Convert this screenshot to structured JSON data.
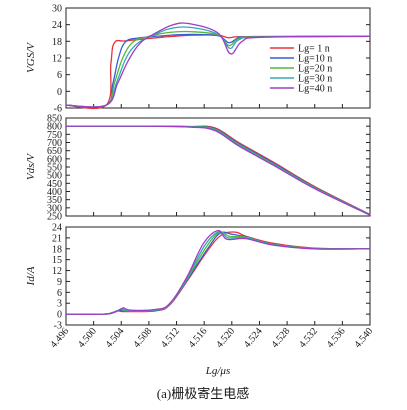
{
  "chart_data": {
    "type": "line",
    "caption": "(a)栅极寄生电感",
    "xlabel": "Lg/μs",
    "x_ticks": [
      "4.496",
      "4.500",
      "4.504",
      "4.508",
      "4.512",
      "4.516",
      "4.520",
      "4.524",
      "4.528",
      "4.532",
      "4.536",
      "4.540"
    ],
    "xlim": [
      4.496,
      4.54
    ],
    "legend": {
      "placement": "top-right of upper panel",
      "entries": [
        "Lg= 1 n",
        "Lg=10 n",
        "Lg=20 n",
        "Lg=30 n",
        "Lg=40 n"
      ]
    },
    "series_colors": [
      "#e8323a",
      "#3b5bd6",
      "#53b83a",
      "#32a8b8",
      "#a03cc8"
    ],
    "panels": [
      {
        "id": "vgs",
        "ylabel": "VGS/V",
        "ylim": [
          -6,
          30
        ],
        "y_ticks": [
          "30",
          "24",
          "18",
          "12",
          "6",
          "0",
          "-6"
        ],
        "y_tick_values": [
          30,
          24,
          18,
          12,
          6,
          0,
          -6
        ],
        "series": [
          {
            "name": "Lg= 1 n",
            "x": [
              4.496,
              4.5018,
              4.5025,
              4.503,
              4.5048,
              4.51,
              4.514,
              4.518,
              4.5194,
              4.5205,
              4.522,
              4.53,
              4.54
            ],
            "y": [
              -5,
              -5,
              10,
              17.5,
              18.2,
              19.5,
              20.2,
              20.2,
              19.3,
              19.6,
              19.7,
              19.8,
              19.8
            ]
          },
          {
            "name": "Lg=10 n",
            "x": [
              4.496,
              4.5018,
              4.5028,
              4.5036,
              4.5046,
              4.5065,
              4.51,
              4.514,
              4.518,
              4.5196,
              4.521,
              4.523,
              4.54
            ],
            "y": [
              -5,
              -5,
              3,
              12,
              17.8,
              19.2,
              20.0,
              20.5,
              20.0,
              17.5,
              19.3,
              19.6,
              19.8
            ]
          },
          {
            "name": "Lg=20 n",
            "x": [
              4.496,
              4.5018,
              4.503,
              4.5042,
              4.5056,
              4.5075,
              4.511,
              4.514,
              4.518,
              4.5196,
              4.521,
              4.524,
              4.54
            ],
            "y": [
              -5,
              -5,
              3,
              12,
              17.5,
              19.5,
              21.2,
              21.5,
              20.3,
              16.5,
              19.0,
              19.6,
              19.8
            ]
          },
          {
            "name": "Lg=30 n",
            "x": [
              4.496,
              4.5018,
              4.5033,
              4.5047,
              4.5063,
              4.5085,
              4.511,
              4.514,
              4.518,
              4.5197,
              4.521,
              4.524,
              4.54
            ],
            "y": [
              -5,
              -5,
              3,
              12,
              17.2,
              20.0,
              22.5,
              23.0,
              20.5,
              15.5,
              18.5,
              19.5,
              19.8
            ]
          },
          {
            "name": "Lg=40 n",
            "x": [
              4.496,
              4.5018,
              4.5035,
              4.505,
              4.5068,
              4.509,
              4.5115,
              4.514,
              4.518,
              4.5198,
              4.5215,
              4.5245,
              4.54
            ],
            "y": [
              -5,
              -5,
              3,
              11,
              17.5,
              21.0,
              24.0,
              24.3,
              21.0,
              13.5,
              18.0,
              19.5,
              19.8
            ]
          }
        ]
      },
      {
        "id": "vds",
        "ylabel": "Vds/V",
        "ylim": [
          250,
          850
        ],
        "y_ticks": [
          "850",
          "800",
          "750",
          "700",
          "650",
          "600",
          "550",
          "500",
          "450",
          "400",
          "350",
          "300",
          "250"
        ],
        "y_tick_values": [
          850,
          800,
          750,
          700,
          650,
          600,
          550,
          500,
          450,
          400,
          350,
          300,
          250
        ],
        "series": [
          {
            "name": "Lg= 1 n",
            "x": [
              4.496,
              4.508,
              4.514,
              4.5175,
              4.521,
              4.526,
              4.532,
              4.54
            ],
            "y": [
              800,
              800,
              798,
              790,
              700,
              580,
              430,
              260
            ]
          },
          {
            "name": "Lg=10 n",
            "x": [
              4.496,
              4.508,
              4.514,
              4.5175,
              4.521,
              4.526,
              4.532,
              4.54
            ],
            "y": [
              800,
              800,
              797,
              786,
              694,
              574,
              426,
              258
            ]
          },
          {
            "name": "Lg=20 n",
            "x": [
              4.496,
              4.508,
              4.514,
              4.5175,
              4.521,
              4.526,
              4.532,
              4.54
            ],
            "y": [
              800,
              800,
              796,
              782,
              689,
              569,
              423,
              257
            ]
          },
          {
            "name": "Lg=30 n",
            "x": [
              4.496,
              4.508,
              4.514,
              4.5175,
              4.521,
              4.526,
              4.532,
              4.54
            ],
            "y": [
              800,
              800,
              795,
              778,
              684,
              565,
              420,
              256
            ]
          },
          {
            "name": "Lg=40 n",
            "x": [
              4.496,
              4.508,
              4.514,
              4.5175,
              4.521,
              4.526,
              4.532,
              4.54
            ],
            "y": [
              800,
              800,
              794,
              774,
              679,
              561,
              417,
              255
            ]
          }
        ]
      },
      {
        "id": "id",
        "ylabel": "Id/A",
        "ylim": [
          -3,
          24
        ],
        "y_ticks": [
          "24",
          "21",
          "18",
          "15",
          "12",
          "9",
          "6",
          "3",
          "0",
          "-3"
        ],
        "y_tick_values": [
          24,
          21,
          18,
          15,
          12,
          9,
          6,
          3,
          0,
          -3
        ],
        "series": [
          {
            "name": "Lg= 1 n",
            "x": [
              4.496,
              4.5015,
              4.5025,
              4.5035,
              4.5045,
              4.509,
              4.511,
              4.5135,
              4.5165,
              4.5185,
              4.5205,
              4.522,
              4.526,
              4.532,
              4.54
            ],
            "y": [
              0,
              0,
              0.3,
              0.9,
              0.7,
              0.9,
              2.5,
              9,
              17.5,
              21.8,
              22.6,
              21.5,
              19.5,
              18.2,
              18
            ]
          },
          {
            "name": "Lg=10 n",
            "x": [
              4.496,
              4.5015,
              4.5027,
              4.5037,
              4.5047,
              4.509,
              4.511,
              4.5135,
              4.5165,
              4.5183,
              4.52,
              4.522,
              4.526,
              4.532,
              4.54
            ],
            "y": [
              0,
              0,
              0.4,
              1.1,
              0.8,
              1.0,
              2.6,
              9.3,
              18,
              22.3,
              22.0,
              21.3,
              19.3,
              18.1,
              18
            ]
          },
          {
            "name": "Lg=20 n",
            "x": [
              4.496,
              4.5015,
              4.5029,
              4.5039,
              4.5049,
              4.509,
              4.511,
              4.5135,
              4.5163,
              4.5182,
              4.5197,
              4.522,
              4.526,
              4.532,
              4.54
            ],
            "y": [
              0,
              0,
              0.5,
              1.3,
              0.9,
              1.1,
              2.7,
              9.6,
              18.5,
              22.5,
              21.4,
              21.2,
              19.2,
              18.1,
              18
            ]
          },
          {
            "name": "Lg=30 n",
            "x": [
              4.496,
              4.5015,
              4.5031,
              4.5041,
              4.5051,
              4.509,
              4.511,
              4.5135,
              4.5161,
              4.5181,
              4.5195,
              4.522,
              4.526,
              4.532,
              4.54
            ],
            "y": [
              0,
              0,
              0.6,
              1.5,
              1.0,
              1.2,
              2.8,
              9.9,
              19,
              22.7,
              21.0,
              21.0,
              19.1,
              18.0,
              18
            ]
          },
          {
            "name": "Lg=40 n",
            "x": [
              4.496,
              4.5015,
              4.5033,
              4.5043,
              4.5053,
              4.509,
              4.511,
              4.5135,
              4.5159,
              4.518,
              4.5193,
              4.522,
              4.526,
              4.532,
              4.54
            ],
            "y": [
              0,
              0,
              0.7,
              1.7,
              1.1,
              1.3,
              2.9,
              10.2,
              19.5,
              23.0,
              20.6,
              20.8,
              19.0,
              18.0,
              18
            ]
          }
        ]
      }
    ]
  }
}
